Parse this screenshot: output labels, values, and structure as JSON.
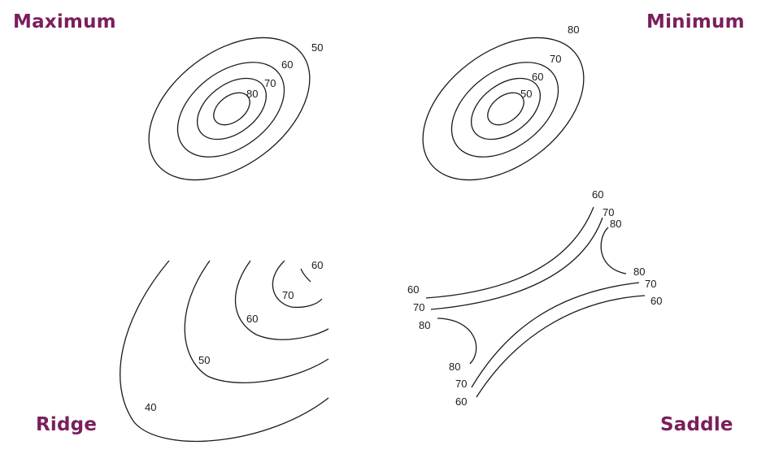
{
  "colors": {
    "title": "#7a1f5c",
    "line": "#1a1a1a",
    "background": "#ffffff"
  },
  "panels": {
    "maximum": {
      "title": "Maximum",
      "labels": [
        "50",
        "60",
        "70",
        "80"
      ]
    },
    "minimum": {
      "title": "Minimum",
      "labels": [
        "80",
        "70",
        "60",
        "50"
      ]
    },
    "ridge": {
      "title": "Ridge",
      "labels": [
        "60",
        "70",
        "60",
        "50",
        "40"
      ]
    },
    "saddle": {
      "title": "Saddle",
      "labels": [
        "60",
        "70",
        "80",
        "80",
        "70",
        "60",
        "60",
        "70",
        "80",
        "80",
        "70",
        "60"
      ]
    }
  }
}
